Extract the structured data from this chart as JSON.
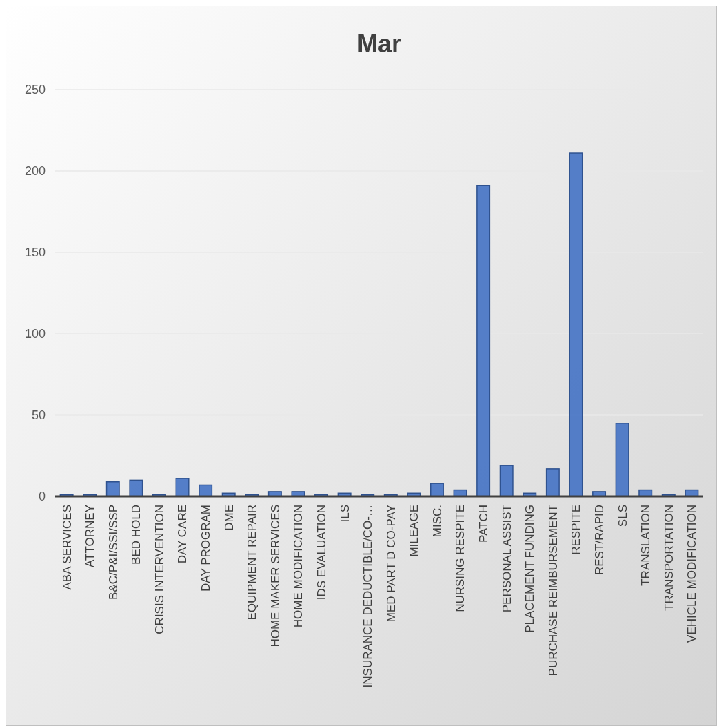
{
  "chart_data": {
    "type": "bar",
    "title": "Mar",
    "categories": [
      "ABA SERVICES",
      "ATTORNEY",
      "B&C/P&I/SSI/SSP",
      "BED HOLD",
      "CRISIS INTERVENTION",
      "DAY CARE",
      "DAY PROGRAM",
      "DME",
      "EQUIPMENT REPAIR",
      "HOME MAKER SERVICES",
      "HOME MODIFICATION",
      "IDS EVALUATION",
      "ILS",
      "INSURANCE DEDUCTIBLE/CO-…",
      "MED PART D CO-PAY",
      "MILEAGE",
      "MISC.",
      "NURSING RESPITE",
      "PATCH",
      "PERSONAL ASSIST",
      "PLACEMENT FUNDING",
      "PURCHASE REIMBURSEMENT",
      "RESPITE",
      "REST/RAPID",
      "SLS",
      "TRANSLATION",
      "TRANSPORTATION",
      "VEHICLE MODIFICATION"
    ],
    "values": [
      1,
      1,
      9,
      10,
      1,
      11,
      7,
      2,
      1,
      3,
      3,
      1,
      2,
      1,
      1,
      2,
      8,
      4,
      191,
      19,
      2,
      17,
      211,
      3,
      45,
      4,
      1,
      4
    ],
    "color": "#4472c4",
    "ylim": [
      0,
      250
    ],
    "yticks": [
      0,
      50,
      100,
      150,
      200,
      250
    ],
    "grid": "y"
  }
}
